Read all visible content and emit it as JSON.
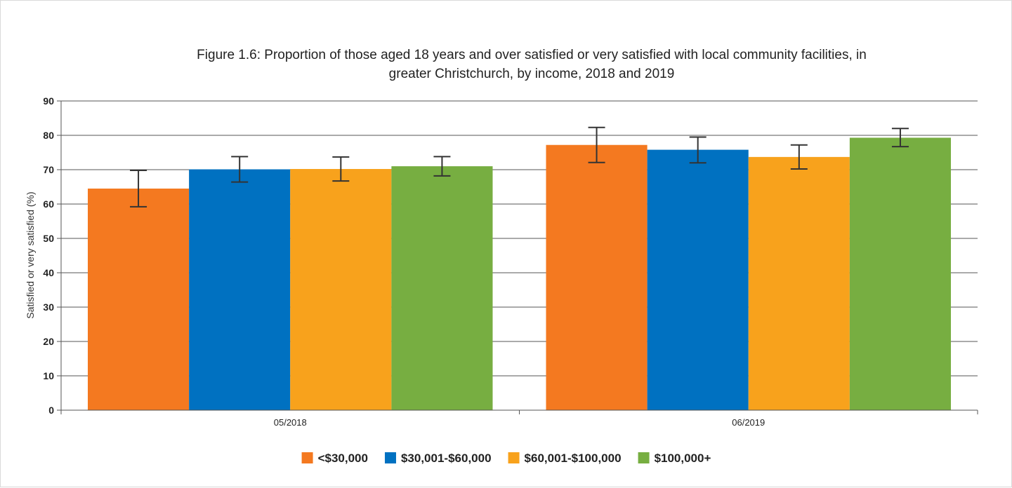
{
  "chart_data": {
    "type": "bar",
    "title_lines": [
      "Figure 1.6: Proportion of those aged 18 years and over satisfied or very satisfied with local community facilities, in",
      "greater Christchurch, by income, 2018 and 2019"
    ],
    "xlabel": "",
    "ylabel": "Satisfied or very satisfied (%)",
    "ylim": [
      0,
      90
    ],
    "yticks": [
      0,
      10,
      20,
      30,
      40,
      50,
      60,
      70,
      80,
      90
    ],
    "categories": [
      "05/2018",
      "06/2019"
    ],
    "grid": true,
    "legend_position": "bottom",
    "series": [
      {
        "name": "<$30,000",
        "color": "#f47920",
        "values": [
          64.5,
          77.2
        ],
        "error_low": [
          59.2,
          72.1
        ],
        "error_high": [
          69.8,
          82.3
        ]
      },
      {
        "name": "$30,001-$60,000",
        "color": "#0071c1",
        "values": [
          70.1,
          75.8
        ],
        "error_low": [
          66.4,
          72.0
        ],
        "error_high": [
          73.8,
          79.5
        ]
      },
      {
        "name": "$60,001-$100,000",
        "color": "#f8a21c",
        "values": [
          70.2,
          73.7
        ],
        "error_low": [
          66.7,
          70.2
        ],
        "error_high": [
          73.7,
          77.2
        ]
      },
      {
        "name": "$100,000+",
        "color": "#77ae41",
        "values": [
          71.0,
          79.3
        ],
        "error_low": [
          68.2,
          76.7
        ],
        "error_high": [
          73.8,
          82.0
        ]
      }
    ]
  }
}
